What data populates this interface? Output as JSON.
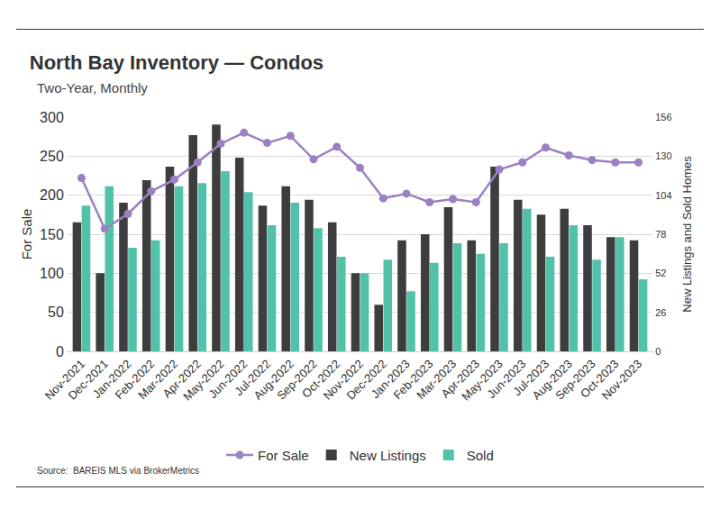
{
  "chart_data": {
    "type": "bar",
    "title": "North Bay Inventory — Condos",
    "subtitle": "Two-Year, Monthly",
    "source": "Source:  BAREIS MLS via BrokerMetrics",
    "ylabel": "For Sale",
    "y2label": "New Listings and Sold Homes",
    "categories": [
      "Nov-2021",
      "Dec-2021",
      "Jan-2022",
      "Feb-2022",
      "Mar-2022",
      "Apr-2022",
      "May-2022",
      "Jun-2022",
      "Jul-2022",
      "Aug-2022",
      "Sep-2022",
      "Oct-2022",
      "Nov-2022",
      "Dec-2022",
      "Jan-2023",
      "Feb-2023",
      "Mar-2023",
      "Apr-2023",
      "May-2023",
      "Jun-2023",
      "Jul-2023",
      "Aug-2023",
      "Sep-2023",
      "Oct-2023",
      "Nov-2023"
    ],
    "series": [
      {
        "name": "For Sale",
        "type": "line",
        "marker": "circle",
        "axis": "y",
        "color": "#9b80c2",
        "values": [
          222,
          157,
          176,
          205,
          220,
          242,
          266,
          280,
          267,
          276,
          246,
          262,
          235,
          196,
          202,
          191,
          195,
          191,
          233,
          242,
          261,
          251,
          245,
          242,
          242
        ]
      },
      {
        "name": "New Listings",
        "type": "bar",
        "axis": "y2",
        "color": "#3d3d3d",
        "values": [
          86,
          52,
          99,
          114,
          123,
          144,
          151,
          129,
          97,
          110,
          101,
          86,
          52,
          31,
          74,
          78,
          96,
          74,
          123,
          101,
          91,
          95,
          84,
          76,
          74
        ]
      },
      {
        "name": "Sold",
        "type": "bar",
        "axis": "y2",
        "color": "#52c1a9",
        "values": [
          97,
          110,
          69,
          74,
          110,
          112,
          120,
          106,
          84,
          99,
          82,
          63,
          52,
          61,
          40,
          59,
          72,
          65,
          72,
          95,
          63,
          84,
          61,
          76,
          48
        ]
      }
    ],
    "ylim": [
      0,
      300
    ],
    "yticks": [
      0,
      50,
      100,
      150,
      200,
      250,
      300
    ],
    "y2lim": [
      0,
      156
    ],
    "y2ticks": [
      0,
      26,
      52,
      78,
      104,
      130,
      156
    ],
    "grid": true,
    "legend": "bottom"
  }
}
